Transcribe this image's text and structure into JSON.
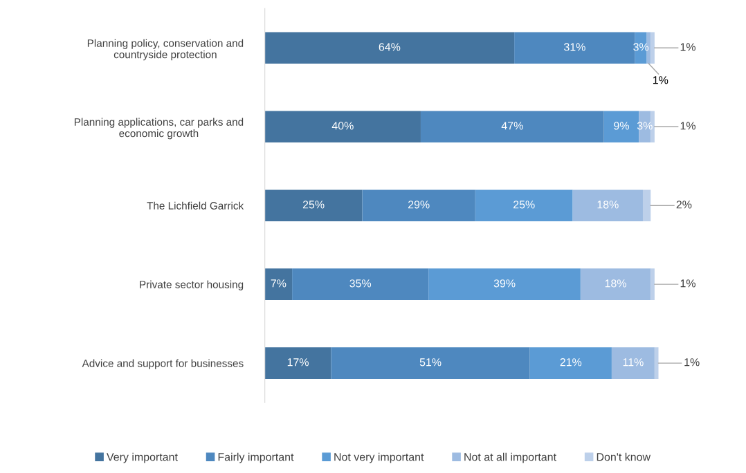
{
  "chart_data": {
    "type": "bar",
    "orientation": "horizontal",
    "stacked": true,
    "grid": false,
    "legend": "bottom",
    "tick_labels": "y",
    "categories": [
      "Planning policy, conservation and\ncountryside protection",
      "Planning applications, car parks and\neconomic growth",
      "The Lichfield Garrick",
      "Private sector housing",
      "Advice and support for businesses"
    ],
    "series": [
      {
        "name": "Very important",
        "color": "#44749f",
        "values": [
          64,
          40,
          25,
          7,
          17
        ],
        "value_labels": [
          "64%",
          "40%",
          "25%",
          "7%",
          "17%"
        ]
      },
      {
        "name": "Fairly important",
        "color": "#4e88bf",
        "values": [
          31,
          47,
          29,
          35,
          51
        ],
        "value_labels": [
          "31%",
          "47%",
          "29%",
          "35%",
          "51%"
        ]
      },
      {
        "name": "Not very important",
        "color": "#5b9bd5",
        "values": [
          3,
          9,
          25,
          39,
          21
        ],
        "value_labels": [
          "3%",
          "9%",
          "25%",
          "39%",
          "21%"
        ]
      },
      {
        "name": "Not at all important",
        "color": "#9dbbe1",
        "values": [
          1,
          3,
          18,
          18,
          11
        ],
        "value_labels": [
          "1%",
          "3%",
          "18%",
          "18%",
          "11%"
        ]
      },
      {
        "name": "Don't know",
        "color": "#bdd0ea",
        "values": [
          1,
          1,
          2,
          1,
          1
        ],
        "value_labels": [
          "1%",
          "1%",
          "2%",
          "1%",
          "1%"
        ]
      }
    ]
  }
}
